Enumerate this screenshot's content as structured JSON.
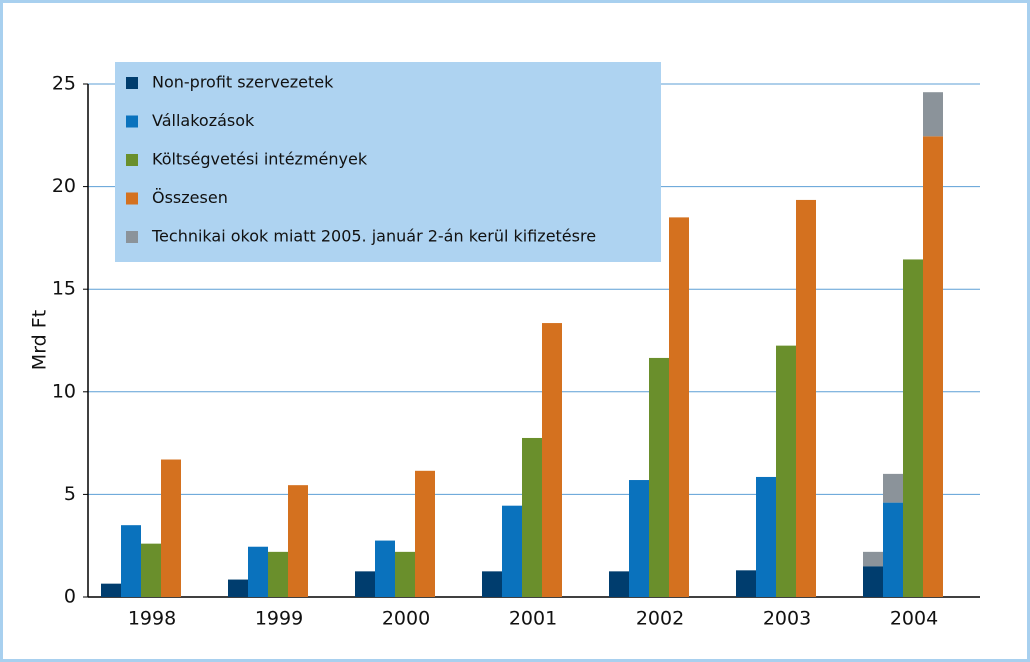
{
  "chart_data": {
    "type": "bar",
    "y_label": "Mrd Ft",
    "categories": [
      "1998",
      "1999",
      "2000",
      "2001",
      "2002",
      "2003",
      "2004"
    ],
    "series": [
      {
        "name": "Non-profit szervezetek",
        "color": "#003d6e",
        "values": [
          0.65,
          0.85,
          1.25,
          1.25,
          1.25,
          1.3,
          1.5
        ]
      },
      {
        "name": "Vállakozások",
        "color": "#0a72bd",
        "values": [
          3.5,
          2.45,
          2.75,
          4.45,
          5.7,
          5.85,
          4.6
        ]
      },
      {
        "name": "Költségvetési intézmények",
        "color": "#6a8f2c",
        "values": [
          2.6,
          2.2,
          2.2,
          7.75,
          11.65,
          12.25,
          16.45
        ]
      },
      {
        "name": "Összesen",
        "color": "#d4711f",
        "values": [
          6.7,
          5.45,
          6.15,
          13.35,
          18.5,
          19.35,
          22.45
        ]
      },
      {
        "name": "Technikai okok miatt 2005.  január 2-án kerül kifizetésre",
        "color": "#8b939a",
        "values": [
          null,
          null,
          null,
          null,
          null,
          null,
          [
            0.7,
            1.4,
            null,
            2.15
          ]
        ]
      }
    ],
    "ylim": [
      0,
      25
    ],
    "yticks": [
      0,
      5,
      10,
      15,
      20,
      25
    ],
    "grid": true,
    "legend": "upper left"
  }
}
